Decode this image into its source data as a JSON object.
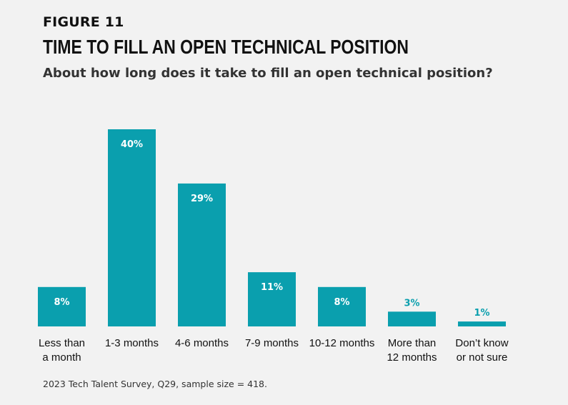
{
  "header": {
    "figure_label": "FIGURE 11",
    "title": "TIME TO FILL AN OPEN TECHNICAL POSITION",
    "subtitle": "About how long does it take to fill an open technical position?"
  },
  "footer": {
    "source": "2023 Tech Talent Survey, Q29, sample size = 418."
  },
  "colors": {
    "bar": "#0a9fae",
    "label_inside": "#ffffff",
    "label_outside": "#0a9fae"
  },
  "chart_data": {
    "type": "bar",
    "title": "TIME TO FILL AN OPEN TECHNICAL POSITION",
    "subtitle": "About how long does it take to fill an open technical position?",
    "xlabel": "",
    "ylabel": "",
    "categories": [
      [
        "Less than",
        "a month"
      ],
      [
        "1-3 months"
      ],
      [
        "4-6 months"
      ],
      [
        "7-9 months"
      ],
      [
        "10-12 months"
      ],
      [
        "More than",
        "12 months"
      ],
      [
        "Don’t know",
        "or not sure"
      ]
    ],
    "values": [
      8,
      40,
      29,
      11,
      8,
      3,
      1
    ],
    "value_labels": [
      "8%",
      "40%",
      "29%",
      "11%",
      "8%",
      "3%",
      "1%"
    ],
    "unit": "%",
    "ylim": [
      0,
      40
    ],
    "grid": false,
    "legend": "none"
  }
}
